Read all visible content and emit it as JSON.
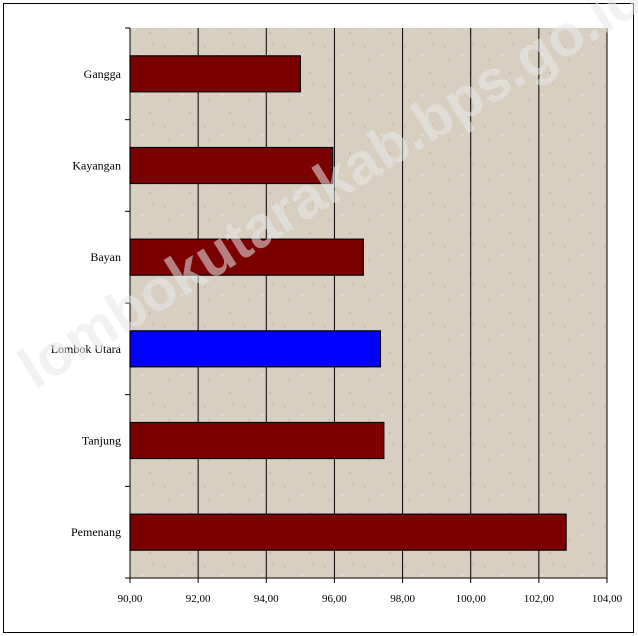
{
  "watermark": "lombokutarakab.bps.go.id",
  "colors": {
    "plot_background": "#d8cfc0",
    "bar": "#7b0000",
    "highlight_bar": "#0000ff",
    "gridline": "#000000"
  },
  "chart_data": {
    "type": "bar",
    "orientation": "horizontal",
    "title": "",
    "xlabel": "",
    "ylabel": "",
    "categories": [
      "Gangga",
      "Kayangan",
      "Bayan",
      "Lombok Utara",
      "Tanjung",
      "Pemenang"
    ],
    "values": [
      95.0,
      95.95,
      96.85,
      97.35,
      97.45,
      102.8
    ],
    "highlight": "Lombok Utara",
    "xlim": [
      90,
      104
    ],
    "xticks": [
      90,
      92,
      94,
      96,
      98,
      100,
      102,
      104
    ],
    "xtick_labels": [
      "90,00",
      "92,00",
      "94,00",
      "96,00",
      "98,00",
      "100,00",
      "102,00",
      "104,00"
    ],
    "grid": "vertical",
    "legend": "none"
  }
}
